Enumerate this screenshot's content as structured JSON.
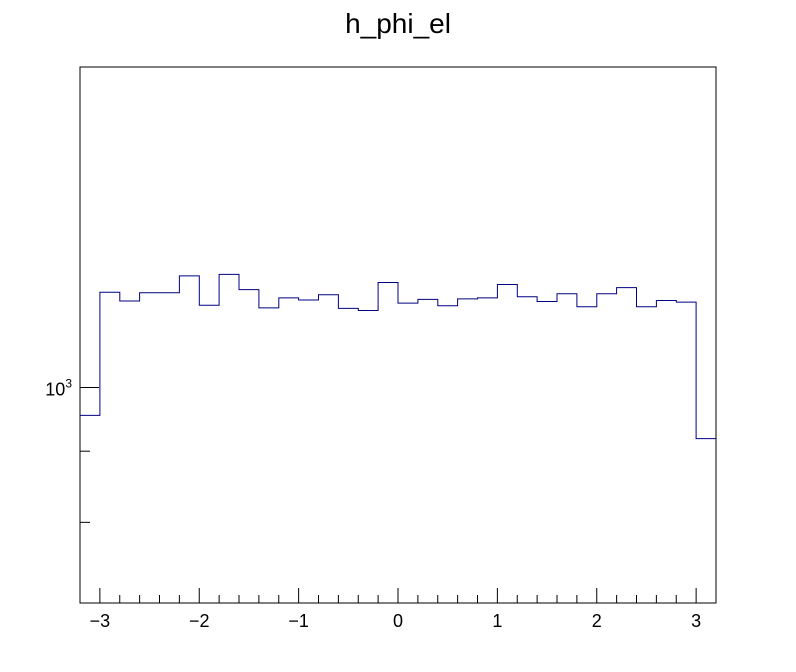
{
  "chart_data": {
    "type": "histogram",
    "title": "h_phi_el",
    "xlabel": "",
    "ylabel": "",
    "xlim": [
      -3.2,
      3.2
    ],
    "ylim": [
      700,
      1700
    ],
    "y_scale": "log",
    "grid": false,
    "legend": "none",
    "line_color": "#000080",
    "x_ticks": [
      {
        "value": -3,
        "label": "−3"
      },
      {
        "value": -2,
        "label": "−2"
      },
      {
        "value": -1,
        "label": "−1"
      },
      {
        "value": 0,
        "label": "0"
      },
      {
        "value": 1,
        "label": "1"
      },
      {
        "value": 2,
        "label": "2"
      },
      {
        "value": 3,
        "label": "3"
      }
    ],
    "y_ticks": [
      {
        "value": 1000,
        "base": "10",
        "exponent": "3"
      }
    ],
    "bin_edges": [
      -3.2,
      -3.0,
      -2.8,
      -2.6,
      -2.4,
      -2.2,
      -2.0,
      -1.8,
      -1.6,
      -1.4,
      -1.2,
      -1.0,
      -0.8,
      -0.6,
      -0.4,
      -0.2,
      0.0,
      0.2,
      0.4,
      0.6,
      0.8,
      1.0,
      1.2,
      1.4,
      1.6,
      1.8,
      2.0,
      2.2,
      2.4,
      2.6,
      2.8,
      3.0,
      3.2
    ],
    "values": [
      955,
      1171,
      1154,
      1170,
      1170,
      1203,
      1146,
      1206,
      1176,
      1141,
      1160,
      1156,
      1166,
      1140,
      1136,
      1190,
      1150,
      1157,
      1145,
      1158,
      1160,
      1186,
      1162,
      1153,
      1168,
      1143,
      1168,
      1180,
      1143,
      1155,
      1152,
      919
    ]
  }
}
